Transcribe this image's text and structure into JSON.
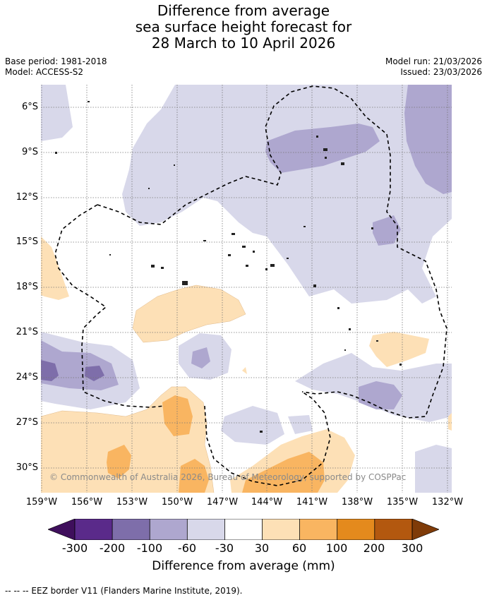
{
  "title": {
    "line1": "Difference from average",
    "line2": "sea surface height forecast for",
    "line3": "28 March to 10 April 2026"
  },
  "meta": {
    "base_period": "Base period: 1981-2018",
    "model": "Model: ACCESS-S2",
    "model_run": "Model run: 21/03/2026",
    "issued": "Issued: 23/03/2026"
  },
  "map": {
    "lat_labels": [
      "6°S",
      "9°S",
      "12°S",
      "15°S",
      "18°S",
      "21°S",
      "24°S",
      "27°S",
      "30°S"
    ],
    "lon_labels": [
      "159°W",
      "156°W",
      "153°W",
      "150°W",
      "147°W",
      "144°W",
      "141°W",
      "138°W",
      "135°W",
      "132°W"
    ],
    "copyright": "© Commonwealth of Australia 2026, Bureau of Meteorology, supported by COSPPac"
  },
  "colorbar": {
    "labels": [
      "-300",
      "-200",
      "-100",
      "-60",
      "-30",
      "30",
      "60",
      "100",
      "200",
      "300"
    ],
    "colors": [
      "#3f0f5c",
      "#5a2a8a",
      "#7e6eaa",
      "#aea7cf",
      "#d8d8ea",
      "#ffffff",
      "#fde0b6",
      "#f9b561",
      "#e48a1d",
      "#b3580f",
      "#7f3b08"
    ],
    "title": "Difference from average (mm)"
  },
  "legend": {
    "text": "--  --  -- EEZ border V11 (Flanders Marine Institute, 2019)."
  }
}
